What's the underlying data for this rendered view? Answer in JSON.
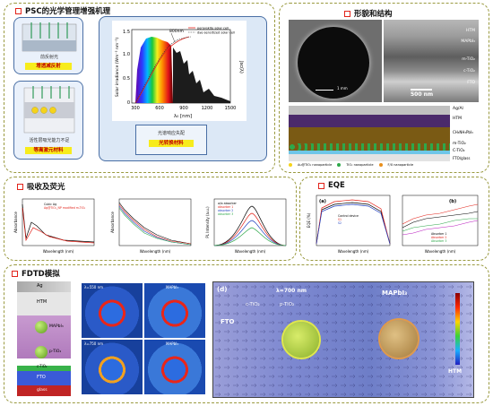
{
  "panel1": {
    "title": "PSC的光学管理增强机理",
    "box1_caption": "前反射光",
    "box1_label": "增透减反射",
    "box2_caption": "活性层吸光能力不足",
    "box2_label": "等离激元材料",
    "chart": {
      "ylabel": "Solar irradiance (Wm⁻² nm⁻¹)",
      "ylabel2": "Jsc(λ)",
      "xlabel": "λ₀ [nm]",
      "xticks": [
        "300",
        "600",
        "900",
        "1200",
        "1500"
      ],
      "yticks": [
        "0",
        "0.5",
        "1.0",
        "1.5"
      ],
      "annotation": "800nm",
      "legend1": "perovskite solar cell",
      "legend2": "dye-sensitized solar cell",
      "under_caption": "光谱响应失配",
      "under_label": "光转换材料"
    }
  },
  "panel2": {
    "title": "形貌和结构",
    "sem_scale": "1 mm",
    "cross_labels": [
      "HTM",
      "MAPbI₃",
      "m-TiO₂",
      "c-TiO₂",
      "FTO"
    ],
    "cross_scale": "500 nm",
    "schematic_labels": [
      "Ag/Al",
      "HTM",
      "CH₃NH₃PbI₃",
      "m-TiO₂",
      "C-TiO₂",
      "FTO/glass"
    ],
    "legend": [
      "Au@TiO₂ nanoparticle",
      "TiO₂ nanoparticle",
      "F/X nanoparticle"
    ]
  },
  "panel3": {
    "title": "吸收及荧光",
    "chart1_xlabel": "Wavelength (nm)",
    "chart1_ylabel": "Absorbance",
    "chart1_legend": [
      "Cubic Ag",
      "Ag@TiO₂_NP modified m-TiO₂"
    ],
    "chart2_xlabel": "Wavelength (nm)",
    "chart2_ylabel": "Absorbance",
    "chart3_xlabel": "Wavelength (nm)",
    "chart3_ylabel": "PL Intensity (a.u.)",
    "chart3_legend": [
      "w/o absorber",
      "absorber 1",
      "absorber 2",
      "absorber 3"
    ]
  },
  "panel4": {
    "title": "EQE",
    "chart1_tag": "(a)",
    "chart1_xlabel": "Wavelength (nm)",
    "chart1_ylabel": "EQE (%)",
    "chart1_legend": [
      "Control device",
      "S1",
      "S2"
    ],
    "chart2_tag": "(b)",
    "chart2_xlabel": "Wavelength (nm)",
    "chart2_legend": [
      "Absorber 1",
      "Absorber 2",
      "Absorber 3"
    ]
  },
  "panel5": {
    "title": "FDTD模拟",
    "stack_labels": [
      "Ag",
      "HTM",
      "MAPbI₃",
      "p-TiO₂",
      "c-TiO₂",
      "FTO",
      "glass"
    ],
    "field_tags": [
      "λ=550 nm",
      "λ=750 nm",
      "MAPbI₃",
      "MAPbI₃"
    ],
    "big_tag": "(d)",
    "big_labels": [
      "FTO",
      "c-TiO₂",
      "p-TiO₂",
      "MAPbI₃",
      "HTM"
    ],
    "big_wavelength": "λ=700 nm"
  },
  "colors": {
    "panel_border": "#9a9a40",
    "title_mark": "#e2231a",
    "box_border": "#4a6fa5",
    "label_bg": "#f7ec1c",
    "label_text": "#c00000"
  }
}
